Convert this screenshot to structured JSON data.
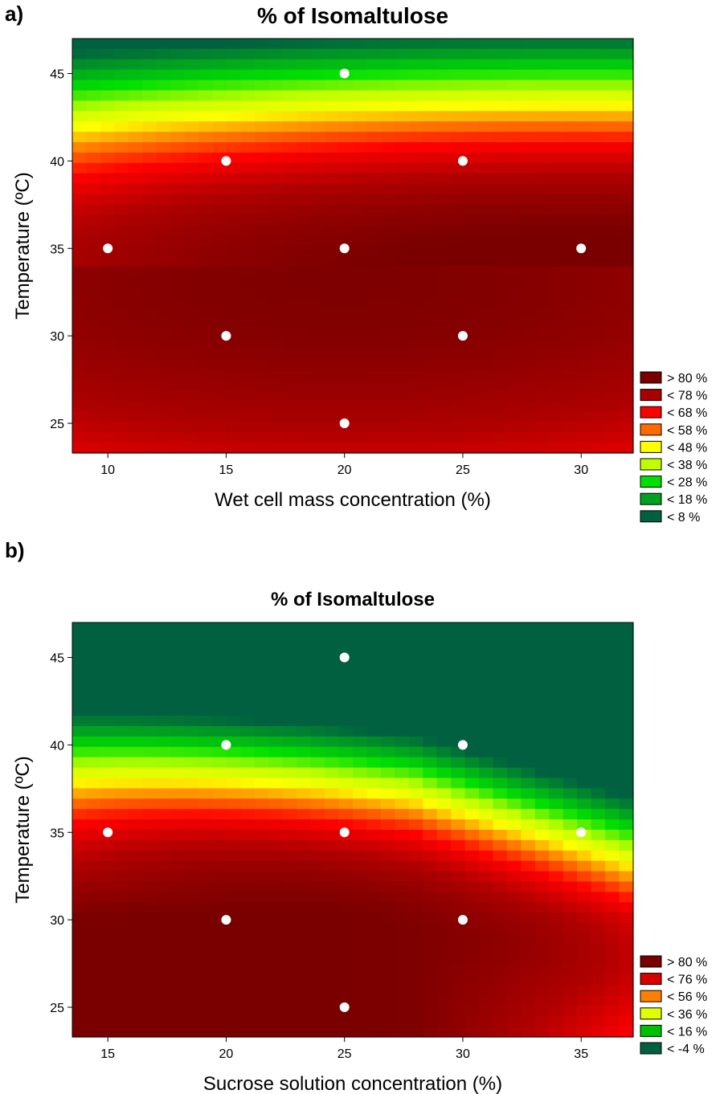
{
  "panels": [
    {
      "letter": "a)"
    },
    {
      "letter": "b)"
    }
  ],
  "chart_data": [
    {
      "type": "heatmap",
      "title": "% of Isomaltulose",
      "xlabel": "Wet cell mass concentration (%)",
      "ylabel": "Temperature (ºC)",
      "xlim": [
        8.5,
        32.2
      ],
      "ylim": [
        23.3,
        47.0
      ],
      "xticks": [
        10,
        15,
        20,
        25,
        30
      ],
      "yticks": [
        25,
        30,
        35,
        40,
        45
      ],
      "legend_position": "bottom-right",
      "legend": [
        {
          "label": "> 80 %",
          "color": "#7a0000"
        },
        {
          "label": "< 78 %",
          "color": "#a80000"
        },
        {
          "label": "< 68 %",
          "color": "#ff0000"
        },
        {
          "label": "< 58 %",
          "color": "#ff6a00"
        },
        {
          "label": "< 48 %",
          "color": "#ffff00"
        },
        {
          "label": "< 38 %",
          "color": "#bfff00"
        },
        {
          "label": "< 28 %",
          "color": "#00e000"
        },
        {
          "label": "< 18 %",
          "color": "#00a020"
        },
        {
          "label": "< 8 %",
          "color": "#006040"
        }
      ],
      "design_points": [
        {
          "x": 20,
          "y": 45
        },
        {
          "x": 15,
          "y": 40
        },
        {
          "x": 25,
          "y": 40
        },
        {
          "x": 10,
          "y": 35
        },
        {
          "x": 20,
          "y": 35
        },
        {
          "x": 30,
          "y": 35
        },
        {
          "x": 15,
          "y": 30
        },
        {
          "x": 25,
          "y": 30
        },
        {
          "x": 20,
          "y": 25
        }
      ]
    },
    {
      "type": "heatmap",
      "title": "% of Isomaltulose",
      "xlabel": "Sucrose solution concentration (%)",
      "ylabel": "Temperature (ºC)",
      "xlim": [
        13.5,
        37.2
      ],
      "ylim": [
        23.3,
        47.0
      ],
      "xticks": [
        15,
        20,
        25,
        30,
        35
      ],
      "yticks": [
        25,
        30,
        35,
        40,
        45
      ],
      "legend_position": "bottom-right",
      "legend": [
        {
          "label": "> 80 %",
          "color": "#7a0000"
        },
        {
          "label": "< 76 %",
          "color": "#d80000"
        },
        {
          "label": "< 56 %",
          "color": "#ff8000"
        },
        {
          "label": "< 36 %",
          "color": "#e0ff00"
        },
        {
          "label": "< 16 %",
          "color": "#00c000"
        },
        {
          "label": "< -4 %",
          "color": "#006040"
        }
      ],
      "design_points": [
        {
          "x": 25,
          "y": 45
        },
        {
          "x": 20,
          "y": 40
        },
        {
          "x": 30,
          "y": 40
        },
        {
          "x": 15,
          "y": 35
        },
        {
          "x": 25,
          "y": 35
        },
        {
          "x": 35,
          "y": 35
        },
        {
          "x": 20,
          "y": 30
        },
        {
          "x": 30,
          "y": 30
        },
        {
          "x": 25,
          "y": 25
        }
      ]
    }
  ]
}
